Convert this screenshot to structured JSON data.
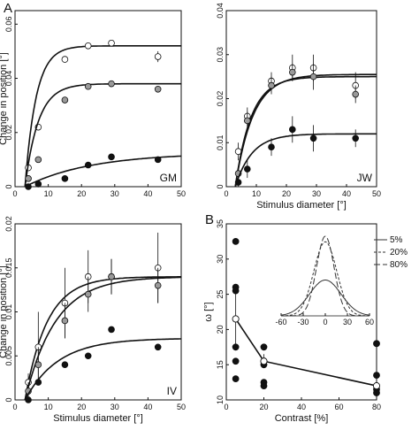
{
  "panel_labels": {
    "A": "A",
    "B": "B"
  },
  "chart_data": [
    {
      "type": "scatter",
      "panel": "GM",
      "subject_label": "GM",
      "xlabel": "",
      "ylabel": "Change in position [°]",
      "xlim": [
        0,
        50
      ],
      "ylim": [
        0,
        0.065
      ],
      "xticks": [
        "0",
        "10",
        "20",
        "30",
        "40",
        "50"
      ],
      "yticks": [
        "0",
        "0.02",
        "0.04",
        "0.06"
      ],
      "ytick_values": [
        0,
        0.02,
        0.04,
        0.06
      ],
      "grid": false,
      "series": [
        {
          "marker": "open",
          "x": [
            4,
            7,
            15,
            22,
            29,
            43
          ],
          "y": [
            0.007,
            0.022,
            0.047,
            0.052,
            0.053,
            0.048
          ],
          "err": [
            0.001,
            0.001,
            0.001,
            0.001,
            0.001,
            0.002
          ],
          "fit": {
            "ymax": 0.052,
            "x0": 3,
            "k": 0.3
          }
        },
        {
          "marker": "gray",
          "x": [
            4,
            7,
            15,
            22,
            29,
            43
          ],
          "y": [
            0.003,
            0.01,
            0.032,
            0.037,
            0.038,
            0.036
          ],
          "err": [
            0,
            0.001,
            0.001,
            0.001,
            0.001,
            0.001
          ],
          "fit": {
            "ymax": 0.038,
            "x0": 3,
            "k": 0.25
          }
        },
        {
          "marker": "filled",
          "x": [
            4,
            7,
            15,
            22,
            29,
            43
          ],
          "y": [
            0.0,
            0.001,
            0.003,
            0.008,
            0.011,
            0.01
          ],
          "err": [
            0,
            0,
            0,
            0,
            0,
            0
          ],
          "fit": {
            "ymax": 0.0125,
            "x0": 3,
            "k": 0.05
          }
        }
      ]
    },
    {
      "type": "scatter",
      "panel": "JW",
      "subject_label": "JW",
      "xlabel": "Stimulus diameter [°]",
      "ylabel": "",
      "xlim": [
        0,
        50
      ],
      "ylim": [
        0,
        0.04
      ],
      "xticks": [
        "0",
        "10",
        "20",
        "30",
        "40",
        "50"
      ],
      "yticks": [
        "0",
        "0.01",
        "0.02",
        "0.03",
        "0.04"
      ],
      "ytick_values": [
        0,
        0.01,
        0.02,
        0.03,
        0.04
      ],
      "grid": false,
      "series": [
        {
          "marker": "open",
          "x": [
            4,
            7,
            15,
            22,
            29,
            43
          ],
          "y": [
            0.008,
            0.016,
            0.024,
            0.027,
            0.027,
            0.023
          ],
          "err": [
            0.002,
            0.002,
            0.002,
            0.003,
            0.003,
            0.003
          ],
          "fit": {
            "ymax": 0.0255,
            "x0": 3,
            "k": 0.17
          }
        },
        {
          "marker": "gray",
          "x": [
            4,
            7,
            15,
            22,
            29,
            43
          ],
          "y": [
            0.003,
            0.015,
            0.023,
            0.026,
            0.025,
            0.021
          ],
          "err": [
            0.001,
            0.002,
            0.002,
            0.002,
            0.003,
            0.002
          ],
          "fit": {
            "ymax": 0.025,
            "x0": 3,
            "k": 0.19
          }
        },
        {
          "marker": "filled",
          "x": [
            4,
            7,
            15,
            22,
            29,
            43
          ],
          "y": [
            0.001,
            0.004,
            0.009,
            0.013,
            0.011,
            0.011
          ],
          "err": [
            0.001,
            0.002,
            0.002,
            0.003,
            0.003,
            0.002
          ],
          "fit": {
            "ymax": 0.012,
            "x0": 3,
            "k": 0.18
          }
        }
      ]
    },
    {
      "type": "scatter",
      "panel": "IV",
      "subject_label": "IV",
      "xlabel": "Stimulus diameter [°]",
      "ylabel": "Change in position [°]",
      "xlim": [
        0,
        50
      ],
      "ylim": [
        0,
        0.02
      ],
      "xticks": [
        "0",
        "10",
        "20",
        "30",
        "40",
        "50"
      ],
      "yticks": [
        "0",
        "0.005",
        "0.01",
        "0.015",
        "0.02"
      ],
      "ytick_values": [
        0,
        0.005,
        0.01,
        0.015,
        0.02
      ],
      "grid": false,
      "series": [
        {
          "marker": "open",
          "x": [
            4,
            7,
            15,
            22,
            29,
            43
          ],
          "y": [
            0.002,
            0.006,
            0.011,
            0.014,
            0.014,
            0.015
          ],
          "err": [
            0.001,
            0.004,
            0.004,
            0.003,
            0.002,
            0.004
          ],
          "fit": {
            "ymax": 0.014,
            "x0": 3,
            "k": 0.15
          }
        },
        {
          "marker": "gray",
          "x": [
            4,
            7,
            15,
            22,
            29,
            43
          ],
          "y": [
            0.001,
            0.004,
            0.009,
            0.012,
            0.014,
            0.013
          ],
          "err": [
            0.001,
            0.002,
            0.002,
            0.002,
            0.002,
            0.002
          ],
          "fit": {
            "ymax": 0.014,
            "x0": 3,
            "k": 0.11
          }
        },
        {
          "marker": "filled",
          "x": [
            4,
            7,
            15,
            22,
            29,
            43
          ],
          "y": [
            0.0,
            0.002,
            0.004,
            0.005,
            0.008,
            0.006
          ],
          "err": [
            0,
            0,
            0,
            0,
            0,
            0
          ],
          "fit": {
            "ymax": 0.007,
            "x0": 3,
            "k": 0.1
          }
        }
      ]
    },
    {
      "type": "scatter",
      "panel": "B",
      "xlabel": "Contrast [%]",
      "ylabel": "ω [°]",
      "xlim": [
        0,
        80
      ],
      "ylim": [
        10,
        35
      ],
      "xticks": [
        "0",
        "20",
        "40",
        "60",
        "80"
      ],
      "yticks": [
        "10",
        "15",
        "20",
        "25",
        "30",
        "35"
      ],
      "ytick_values": [
        10,
        15,
        20,
        25,
        30,
        35
      ],
      "grid": false,
      "points": {
        "x": [
          5,
          5,
          5,
          5,
          5,
          5,
          20,
          20,
          20,
          20,
          20,
          80,
          80,
          80,
          80
        ],
        "y": [
          32.5,
          26.0,
          25.5,
          17.5,
          15.5,
          13.0,
          17.5,
          15.5,
          15.0,
          12.5,
          12.0,
          18.0,
          13.5,
          11.5,
          11.0
        ]
      },
      "mean": {
        "x": [
          5,
          20,
          80
        ],
        "y": [
          21.5,
          15.5,
          12.0
        ],
        "err": [
          4.0,
          1.0,
          1.5
        ]
      },
      "inset": {
        "xlim": [
          -60,
          60
        ],
        "xticks": [
          "-60",
          "-30",
          "0",
          "30",
          "60"
        ],
        "legend": [
          "5%",
          "20%",
          "80%"
        ],
        "legend_placement": "top-right",
        "curves": [
          {
            "name": "5%",
            "sigma": 21.5,
            "amp": 0.45,
            "style": "solid"
          },
          {
            "name": "20%",
            "sigma": 15.5,
            "amp": 0.93,
            "style": "dashed"
          },
          {
            "name": "80%",
            "sigma": 12.0,
            "amp": 1.0,
            "style": "longdash"
          }
        ]
      }
    }
  ]
}
